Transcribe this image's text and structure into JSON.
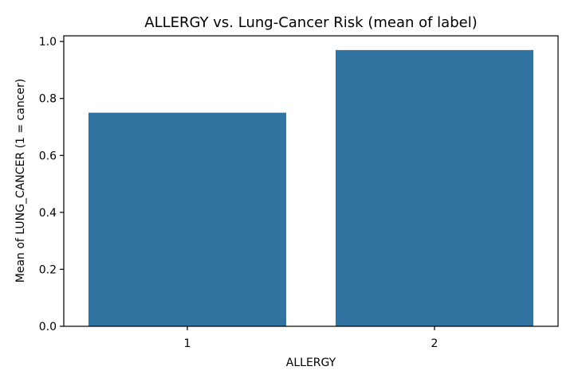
{
  "chart_data": {
    "type": "bar",
    "title": "ALLERGY vs. Lung-Cancer Risk (mean of label)",
    "xlabel": "ALLERGY",
    "ylabel": "Mean of LUNG_CANCER (1 = cancer)",
    "categories": [
      "1",
      "2"
    ],
    "values": [
      0.75,
      0.97
    ],
    "ylim": [
      0,
      1.02
    ],
    "yticks": [
      "0.0",
      "0.2",
      "0.4",
      "0.6",
      "0.8",
      "1.0"
    ],
    "bar_color": "#3274a1",
    "grid": false,
    "legend": "none"
  }
}
